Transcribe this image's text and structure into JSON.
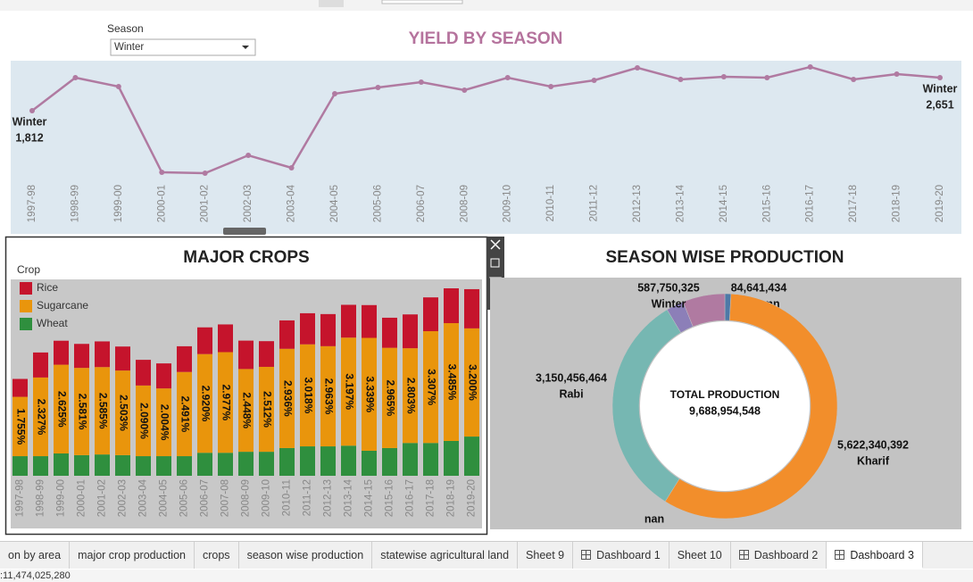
{
  "filter": {
    "label": "Season",
    "selected": "Winter"
  },
  "chart_data": [
    {
      "type": "line",
      "title": "YIELD BY SEASON",
      "categories": [
        "1997-98",
        "1998-99",
        "1999-00",
        "2000-01",
        "2001-02",
        "2002-03",
        "2003-04",
        "2004-05",
        "2005-06",
        "2006-07",
        "2008-09",
        "2009-10",
        "2010-11",
        "2011-12",
        "2012-13",
        "2013-14",
        "2014-15",
        "2015-16",
        "2016-17",
        "2017-18",
        "2018-19",
        "2019-20"
      ],
      "series": [
        {
          "name": "Winter",
          "color": "#b07aa1",
          "values": [
            1812,
            2651,
            2424,
            247,
            225,
            678,
            361,
            2243,
            2402,
            2538,
            2334,
            2651,
            2424,
            2583,
            2901,
            2606,
            2674,
            2651,
            2923,
            2606,
            2742,
            2651
          ],
          "value_labels": [
            "1,812",
            null,
            null,
            null,
            null,
            null,
            null,
            null,
            null,
            null,
            null,
            null,
            null,
            null,
            null,
            null,
            null,
            null,
            null,
            null,
            null,
            "2,651"
          ]
        }
      ]
    },
    {
      "type": "bar",
      "stacked": true,
      "title": "MAJOR CROPS",
      "legend_title": "Crop",
      "categories": [
        "1997-98",
        "1998-99",
        "1999-00",
        "2000-01",
        "2001-02",
        "2002-03",
        "2003-04",
        "2004-05",
        "2005-06",
        "2006-07",
        "2007-08",
        "2008-09",
        "2009-10",
        "2010-11",
        "2011-12",
        "2012-13",
        "2013-14",
        "2014-15",
        "2015-16",
        "2016-17",
        "2017-18",
        "2018-19",
        "2019-20"
      ],
      "series": [
        {
          "name": "Rice",
          "color": "#c5142c",
          "values": [
            0.53,
            0.74,
            0.71,
            0.71,
            0.76,
            0.71,
            0.76,
            0.74,
            0.76,
            0.79,
            0.82,
            0.84,
            0.76,
            0.84,
            0.92,
            0.95,
            0.97,
            0.97,
            0.89,
            1.0,
            1.0,
            1.03,
            1.16
          ]
        },
        {
          "name": "Sugarcane",
          "color": "#e9950c",
          "values": [
            1.755,
            2.327,
            2.625,
            2.581,
            2.585,
            2.503,
            2.09,
            2.004,
            2.491,
            2.92,
            2.977,
            2.448,
            2.512,
            2.936,
            3.018,
            2.963,
            3.197,
            3.339,
            2.965,
            2.803,
            3.307,
            3.485,
            3.2
          ],
          "value_labels": [
            "1.755%",
            "2.327%",
            "2.625%",
            "2.581%",
            "2.585%",
            "2.503%",
            "2.090%",
            "2.004%",
            "2.491%",
            "2.920%",
            "2.977%",
            "2.448%",
            "2.512%",
            "2.936%",
            "3.018%",
            "2.963%",
            "3.197%",
            "3.339%",
            "2.965%",
            "2.803%",
            "3.307%",
            "3.485%",
            "3.200%"
          ]
        },
        {
          "name": "Wheat",
          "color": "#2f8f3e",
          "values": [
            0.58,
            0.58,
            0.66,
            0.61,
            0.63,
            0.61,
            0.58,
            0.58,
            0.58,
            0.68,
            0.68,
            0.71,
            0.71,
            0.82,
            0.87,
            0.87,
            0.89,
            0.74,
            0.82,
            0.97,
            0.97,
            1.03,
            1.16
          ]
        }
      ]
    },
    {
      "type": "pie",
      "donut": true,
      "title": "SEASON WISE PRODUCTION",
      "center_label": "TOTAL PRODUCTION",
      "center_value": "9,688,954,548",
      "categories": [
        "Autumn",
        "Kharif",
        "Rabi",
        "nan",
        "Winter"
      ],
      "values": [
        84641434,
        5622340392,
        3150456464,
        243765933,
        587750325
      ],
      "value_labels": [
        "84,641,434",
        "5,622,340,392",
        "3,150,456,464",
        null,
        "587,750,325"
      ],
      "colors": [
        "#4e79a7",
        "#f28e2b",
        "#76b7b2",
        "#8c7fb8",
        "#b07aa1"
      ]
    }
  ],
  "tabs": [
    "on by area",
    "major crop production",
    "crops",
    "season wise production",
    "statewise agricultural land",
    "Sheet 9",
    "Dashboard 1",
    "Sheet 10",
    "Dashboard 2",
    "Dashboard 3"
  ],
  "status": ":11,474,025,280"
}
